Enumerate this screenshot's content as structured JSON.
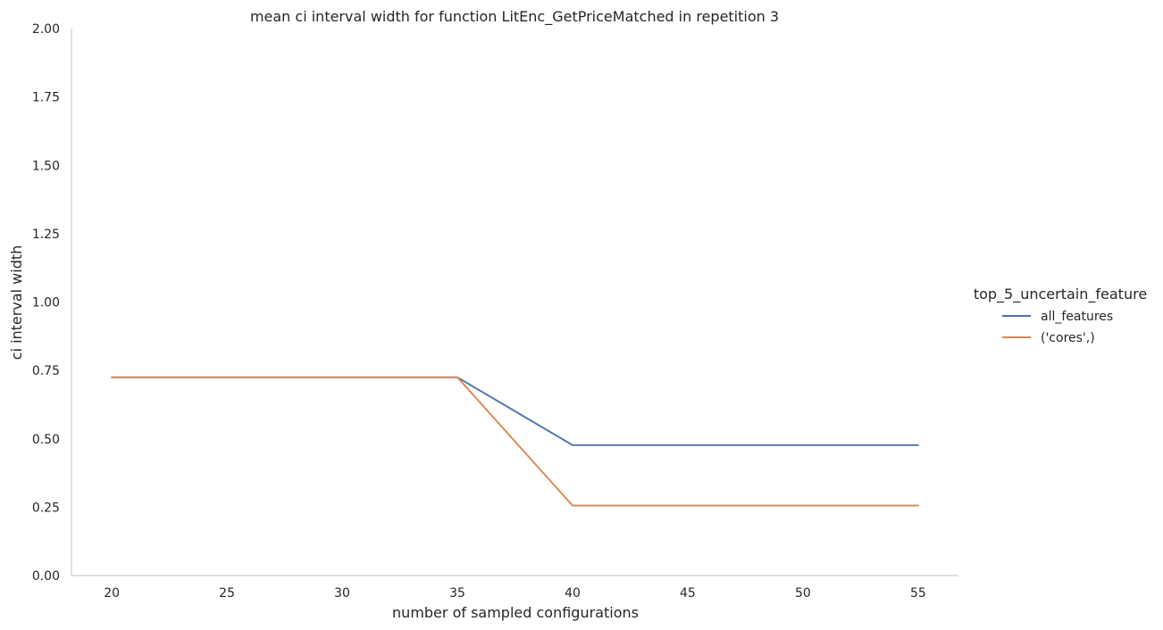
{
  "chart_data": {
    "type": "line",
    "title": "mean ci interval width for function LitEnc_GetPriceMatched in repetition 3",
    "xlabel": "number of sampled configurations",
    "ylabel": "ci interval width",
    "x": [
      20,
      35,
      40,
      55
    ],
    "xlim": [
      18.25,
      56.75
    ],
    "ylim": [
      0,
      2
    ],
    "xticks": [
      "20",
      "25",
      "30",
      "35",
      "40",
      "45",
      "50",
      "55"
    ],
    "yticks": [
      "0.00",
      "0.25",
      "0.50",
      "0.75",
      "1.00",
      "1.25",
      "1.50",
      "1.75",
      "2.00"
    ],
    "grid": false,
    "legend_title": "top_5_uncertain_feature",
    "legend_position": "right",
    "series": [
      {
        "name": "all_features",
        "color": "#4c72b0",
        "values": [
          0.725,
          0.725,
          0.477,
          0.477
        ]
      },
      {
        "name": "('cores',)",
        "color": "#dd8452",
        "values": [
          0.725,
          0.725,
          0.256,
          0.256
        ]
      }
    ]
  }
}
